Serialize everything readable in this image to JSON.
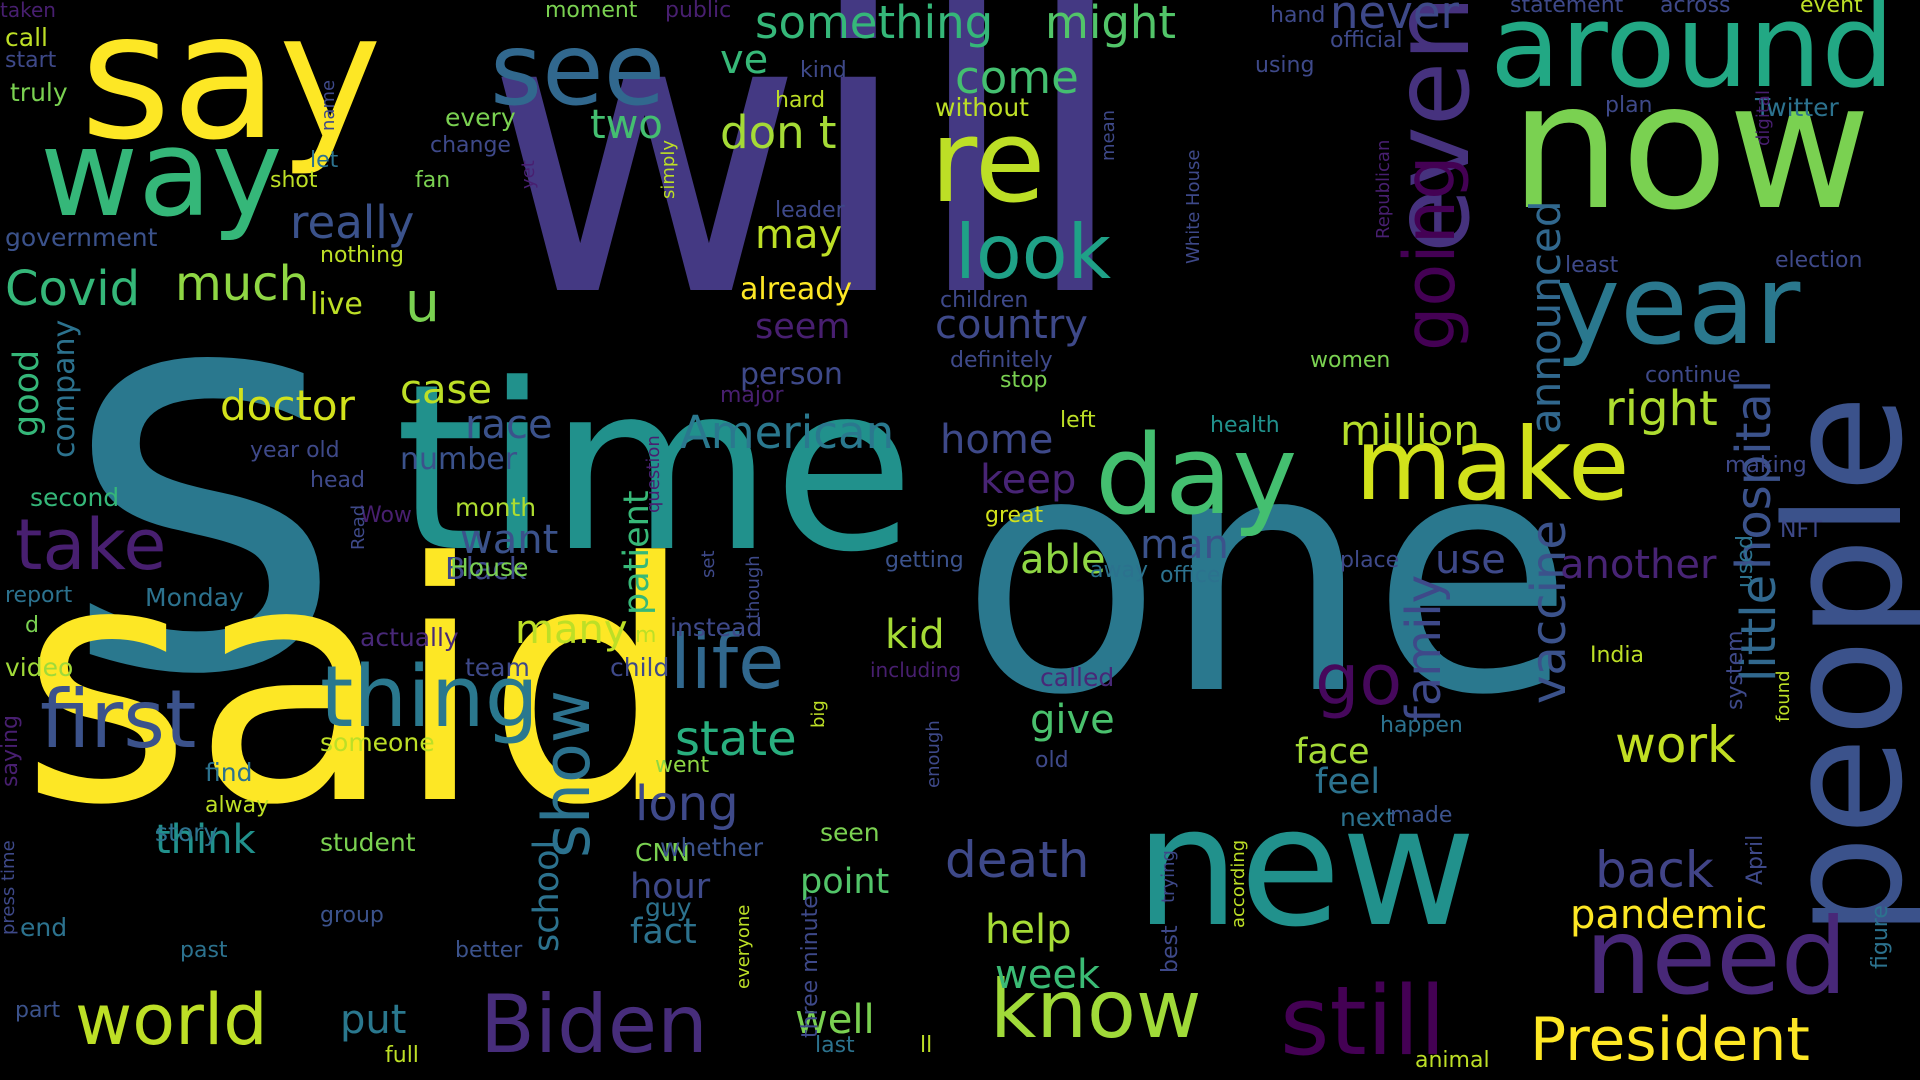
{
  "words": [
    {
      "text": "will",
      "color": "#443983"
    },
    {
      "text": "s",
      "color": "#2a788e"
    },
    {
      "text": "one",
      "color": "#2a788e"
    },
    {
      "text": "said",
      "color": "#fde725"
    },
    {
      "text": "time",
      "color": "#21918c"
    },
    {
      "text": "say",
      "color": "#fde725"
    },
    {
      "text": "now",
      "color": "#7ad151"
    },
    {
      "text": "new",
      "color": "#21918c"
    },
    {
      "text": "people",
      "color": "#3b528b"
    },
    {
      "text": "way",
      "color": "#35b779"
    },
    {
      "text": "around",
      "color": "#22a884"
    },
    {
      "text": "see",
      "color": "#31688e"
    },
    {
      "text": "re",
      "color": "#bddf26"
    },
    {
      "text": "year",
      "color": "#2a788e"
    },
    {
      "text": "even",
      "color": "#46327e"
    },
    {
      "text": "make",
      "color": "#d2e21b"
    },
    {
      "text": "day",
      "color": "#44bf70"
    },
    {
      "text": "need",
      "color": "#482878"
    },
    {
      "text": "still",
      "color": "#440154"
    },
    {
      "text": "know",
      "color": "#a0da39"
    },
    {
      "text": "thing",
      "color": "#2a788e"
    },
    {
      "text": "first",
      "color": "#3b528b"
    },
    {
      "text": "take",
      "color": "#481f70"
    },
    {
      "text": "Biden",
      "color": "#472d7b"
    },
    {
      "text": "world",
      "color": "#bddf26"
    },
    {
      "text": "life",
      "color": "#31688e"
    },
    {
      "text": "look",
      "color": "#1fa187"
    },
    {
      "text": "going",
      "color": "#440154"
    },
    {
      "text": "go",
      "color": "#46085c"
    },
    {
      "text": "President",
      "color": "#fde725"
    },
    {
      "text": "show",
      "color": "#2c728e"
    },
    {
      "text": "hospital",
      "color": "#3b528b"
    },
    {
      "text": "little",
      "color": "#31688e"
    },
    {
      "text": "announced",
      "color": "#31688e"
    },
    {
      "text": "vaccine",
      "color": "#3b528b"
    },
    {
      "text": "family",
      "color": "#3e4989"
    },
    {
      "text": "American",
      "color": "#2a788e"
    },
    {
      "text": "death",
      "color": "#3e4989"
    },
    {
      "text": "back",
      "color": "#414487"
    },
    {
      "text": "work",
      "color": "#c2df23"
    },
    {
      "text": "state",
      "color": "#29af7f"
    },
    {
      "text": "long",
      "color": "#3e4989"
    },
    {
      "text": "doctor",
      "color": "#d2e21b"
    },
    {
      "text": "million",
      "color": "#b5de2b"
    },
    {
      "text": "right",
      "color": "#addc30"
    },
    {
      "text": "pandemic",
      "color": "#fde725"
    },
    {
      "text": "something",
      "color": "#35b779"
    },
    {
      "text": "might",
      "color": "#52c569"
    },
    {
      "text": "come",
      "color": "#44bf70"
    },
    {
      "text": "never",
      "color": "#3e4989"
    },
    {
      "text": "don t",
      "color": "#a5db36"
    },
    {
      "text": "two",
      "color": "#44bf70"
    },
    {
      "text": "ve",
      "color": "#37b878"
    },
    {
      "text": "really",
      "color": "#3b528b"
    },
    {
      "text": "may",
      "color": "#bddf26"
    },
    {
      "text": "country",
      "color": "#3e4989"
    },
    {
      "text": "Covid",
      "color": "#35b779"
    },
    {
      "text": "much",
      "color": "#8fd744"
    },
    {
      "text": "u",
      "color": "#7ad151"
    },
    {
      "text": "case",
      "color": "#bddf26"
    },
    {
      "text": "race",
      "color": "#3b528b"
    },
    {
      "text": "home",
      "color": "#3e4989"
    },
    {
      "text": "keep",
      "color": "#482475"
    },
    {
      "text": "able",
      "color": "#8fd744"
    },
    {
      "text": "man",
      "color": "#3b528b"
    },
    {
      "text": "want",
      "color": "#3b528b"
    },
    {
      "text": "patient",
      "color": "#37b878"
    },
    {
      "text": "many",
      "color": "#bddf26"
    },
    {
      "text": "kid",
      "color": "#a5db36"
    },
    {
      "text": "give",
      "color": "#4ac16d"
    },
    {
      "text": "help",
      "color": "#a5db36"
    },
    {
      "text": "week",
      "color": "#3bbb75"
    },
    {
      "text": "well",
      "color": "#7ad151"
    },
    {
      "text": "put",
      "color": "#2a788e"
    },
    {
      "text": "think",
      "color": "#21918c"
    },
    {
      "text": "school",
      "color": "#2c728e"
    },
    {
      "text": "hour",
      "color": "#3e4989"
    },
    {
      "text": "fact",
      "color": "#2c728e"
    },
    {
      "text": "point",
      "color": "#52c569"
    },
    {
      "text": "use",
      "color": "#3e4989"
    },
    {
      "text": "another",
      "color": "#482475"
    },
    {
      "text": "feel",
      "color": "#2c728e"
    },
    {
      "text": "face",
      "color": "#a5db36"
    },
    {
      "text": "good",
      "color": "#35b779"
    },
    {
      "text": "company",
      "color": "#2c728e"
    },
    {
      "text": "seem",
      "color": "#481f70"
    },
    {
      "text": "already",
      "color": "#fde725"
    },
    {
      "text": "live",
      "color": "#bddf26"
    },
    {
      "text": "person",
      "color": "#3e4989"
    },
    {
      "text": "number",
      "color": "#3b528b"
    },
    {
      "text": "month",
      "color": "#addc30"
    },
    {
      "text": "second",
      "color": "#35b779"
    },
    {
      "text": "Black",
      "color": "#3e4989"
    },
    {
      "text": "House",
      "color": "#7ad151"
    },
    {
      "text": "Monday",
      "color": "#2c728e"
    },
    {
      "text": "actually",
      "color": "#482878"
    },
    {
      "text": "video",
      "color": "#a0da39"
    },
    {
      "text": "someone",
      "color": "#bddf26"
    },
    {
      "text": "find",
      "color": "#2c728e"
    },
    {
      "text": "story",
      "color": "#2c728e"
    },
    {
      "text": "student",
      "color": "#7ad151"
    },
    {
      "text": "end",
      "color": "#2c728e"
    },
    {
      "text": "seen",
      "color": "#7ad151"
    },
    {
      "text": "CNN",
      "color": "#7ad151"
    },
    {
      "text": "whether",
      "color": "#3b528b"
    },
    {
      "text": "guy",
      "color": "#2c728e"
    },
    {
      "text": "three minute",
      "color": "#3e4989"
    },
    {
      "text": "instead",
      "color": "#3e4989"
    },
    {
      "text": "team",
      "color": "#3e4989"
    },
    {
      "text": "child",
      "color": "#3e4989"
    },
    {
      "text": "including",
      "color": "#481f70"
    },
    {
      "text": "went",
      "color": "#8fd744"
    },
    {
      "text": "called",
      "color": "#482878"
    },
    {
      "text": "old",
      "color": "#3e4989"
    },
    {
      "text": "happen",
      "color": "#2c728e"
    },
    {
      "text": "next",
      "color": "#2c728e"
    },
    {
      "text": "made",
      "color": "#3b528b"
    },
    {
      "text": "best",
      "color": "#3e4989"
    },
    {
      "text": "last",
      "color": "#2c728e"
    },
    {
      "text": "ll",
      "color": "#bddf26"
    },
    {
      "text": "animal",
      "color": "#bddf26"
    },
    {
      "text": "full",
      "color": "#bddf26"
    },
    {
      "text": "part",
      "color": "#3b528b"
    },
    {
      "text": "past",
      "color": "#2c728e"
    },
    {
      "text": "better",
      "color": "#3b528b"
    },
    {
      "text": "group",
      "color": "#3b528b"
    },
    {
      "text": "alway",
      "color": "#bddf26"
    },
    {
      "text": "getting",
      "color": "#3b528b"
    },
    {
      "text": "great",
      "color": "#d2e21b"
    },
    {
      "text": "office",
      "color": "#2c728e"
    },
    {
      "text": "away",
      "color": "#2c728e"
    },
    {
      "text": "place",
      "color": "#3e4989"
    },
    {
      "text": "NFT",
      "color": "#3e4989"
    },
    {
      "text": "making",
      "color": "#3e4989"
    },
    {
      "text": "health",
      "color": "#21918c"
    },
    {
      "text": "left",
      "color": "#bddf26"
    },
    {
      "text": "stop",
      "color": "#7ad151"
    },
    {
      "text": "major",
      "color": "#481f70"
    },
    {
      "text": "women",
      "color": "#7ad151"
    },
    {
      "text": "continue",
      "color": "#3e4989"
    },
    {
      "text": "definitely",
      "color": "#3e4989"
    },
    {
      "text": "children",
      "color": "#3e4989"
    },
    {
      "text": "moment",
      "color": "#7ad151"
    },
    {
      "text": "public",
      "color": "#481f70"
    },
    {
      "text": "hand",
      "color": "#3e4989"
    },
    {
      "text": "statement",
      "color": "#3e4989"
    },
    {
      "text": "across",
      "color": "#3e4989"
    },
    {
      "text": "event",
      "color": "#bddf26"
    },
    {
      "text": "official",
      "color": "#3e4989"
    },
    {
      "text": "using",
      "color": "#3e4989"
    },
    {
      "text": "kind",
      "color": "#3e4989"
    },
    {
      "text": "hard",
      "color": "#bddf26"
    },
    {
      "text": "without",
      "color": "#bddf26"
    },
    {
      "text": "every",
      "color": "#7ad151"
    },
    {
      "text": "plan",
      "color": "#3e4989"
    },
    {
      "text": "Twitter",
      "color": "#2c728e"
    },
    {
      "text": "least",
      "color": "#3e4989"
    },
    {
      "text": "election",
      "color": "#3e4989"
    },
    {
      "text": "leader",
      "color": "#3e4989"
    },
    {
      "text": "call",
      "color": "#bddf26"
    },
    {
      "text": "start",
      "color": "#3e4989"
    },
    {
      "text": "truly",
      "color": "#7ad151"
    },
    {
      "text": "government",
      "color": "#3b528b"
    },
    {
      "text": "fan",
      "color": "#7ad151"
    },
    {
      "text": "shot",
      "color": "#bddf26"
    },
    {
      "text": "let",
      "color": "#2c728e"
    },
    {
      "text": "change",
      "color": "#3e4989"
    },
    {
      "text": "nothing",
      "color": "#bddf26"
    },
    {
      "text": "report",
      "color": "#2c728e"
    },
    {
      "text": "d",
      "color": "#7ad151"
    },
    {
      "text": "head",
      "color": "#3e4989"
    },
    {
      "text": "year old",
      "color": "#3e4989"
    },
    {
      "text": "Wow",
      "color": "#481f70"
    },
    {
      "text": "m",
      "color": "#bddf26"
    },
    {
      "text": "name",
      "color": "#3e4989"
    },
    {
      "text": "yet",
      "color": "#481f70"
    },
    {
      "text": "simply",
      "color": "#bddf26"
    },
    {
      "text": "mean",
      "color": "#3e4989"
    },
    {
      "text": "White House",
      "color": "#3e4989"
    },
    {
      "text": "Republican",
      "color": "#481f70"
    },
    {
      "text": "digital",
      "color": "#481f70"
    },
    {
      "text": "question",
      "color": "#481f70"
    },
    {
      "text": "Read",
      "color": "#3e4989"
    },
    {
      "text": "set",
      "color": "#3e4989"
    },
    {
      "text": "though",
      "color": "#3e4989"
    },
    {
      "text": "big",
      "color": "#bddf26"
    },
    {
      "text": "enough",
      "color": "#3e4989"
    },
    {
      "text": "everyone",
      "color": "#bddf26"
    },
    {
      "text": "trying",
      "color": "#3e4989"
    },
    {
      "text": "according",
      "color": "#bddf26"
    },
    {
      "text": "press time",
      "color": "#3e4989"
    },
    {
      "text": "saying",
      "color": "#481f70"
    },
    {
      "text": "used",
      "color": "#2c728e"
    },
    {
      "text": "system",
      "color": "#3e4989"
    },
    {
      "text": "found",
      "color": "#bddf26"
    },
    {
      "text": "April",
      "color": "#3e4989"
    },
    {
      "text": "figure",
      "color": "#2c728e"
    },
    {
      "text": "India",
      "color": "#bddf26"
    },
    {
      "text": "taken",
      "color": "#481f70"
    }
  ]
}
